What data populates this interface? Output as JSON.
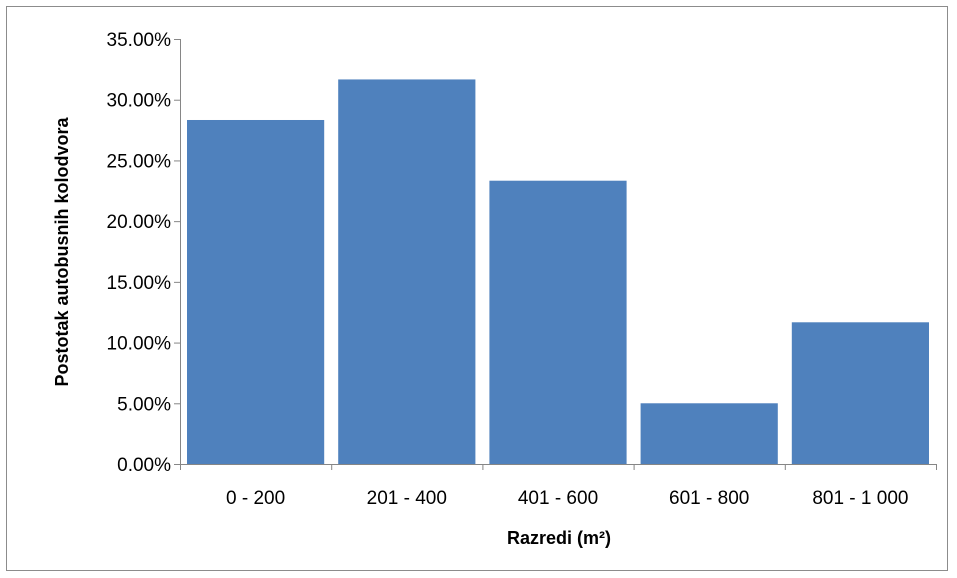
{
  "chart_data": {
    "type": "bar",
    "title": "",
    "xlabel": "Razredi (m²)",
    "ylabel": "Postotak autobusnih kolodvora",
    "categories": [
      "0 - 200",
      "201 - 400",
      "401 - 600",
      "601 - 800",
      "801 - 1 000"
    ],
    "values": [
      28.33,
      31.67,
      23.33,
      5.0,
      11.67
    ],
    "ylim": [
      0,
      35
    ],
    "yticks": [
      "0.00%",
      "5.00%",
      "10.00%",
      "15.00%",
      "20.00%",
      "25.00%",
      "30.00%",
      "35.00%"
    ],
    "grid": false,
    "legend": "none",
    "bar_color": "#4f81bd"
  }
}
